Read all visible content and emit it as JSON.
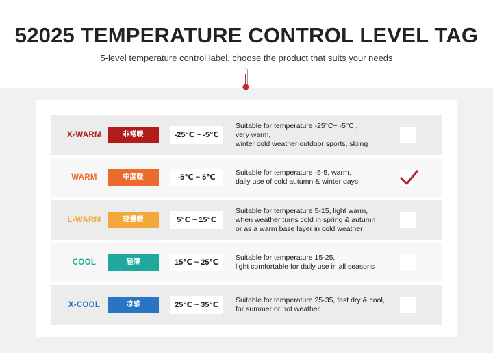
{
  "header": {
    "title": "52025 TEMPERATURE CONTROL LEVEL TAG",
    "subtitle": "5-level temperature control label, choose the product that suits your needs"
  },
  "levels": [
    {
      "name": "X-WARM",
      "cn": "非常暖",
      "color": "#b21c1c",
      "range": "-25℃ ~ -5℃",
      "desc": [
        "Suitable for temperature -25°C~ -5°C ,",
        "very warm,",
        "winter cold weather outdoor sports, skiing"
      ],
      "checked": false
    },
    {
      "name": "WARM",
      "cn": "中度暖",
      "color": "#ec6a2c",
      "range": "-5℃ ~ 5℃",
      "desc": [
        "Suitable for temperature -5-5, warm,",
        "daily use of cold autumn & winter days"
      ],
      "checked": true
    },
    {
      "name": "L-WARM",
      "cn": "轻量暖",
      "color": "#f3a83a",
      "range": "5℃ ~ 15℃",
      "desc": [
        "Suitable for temperature 5-15, light warm,",
        "when weather turns cold in spring & autumn",
        "or as a warm base layer in cold weather"
      ],
      "checked": false
    },
    {
      "name": "COOL",
      "cn": "轻薄",
      "color": "#1fa89e",
      "range": "15℃ ~ 25℃",
      "desc": [
        "Suitable for temperature 15-25,",
        "light  comfortable for daily use in all seasons"
      ],
      "checked": false
    },
    {
      "name": "X-COOL",
      "cn": "凉感",
      "color": "#2a74c4",
      "range": "25℃ ~ 35℃",
      "desc": [
        "Suitable for temperature 25-35, fast dry & cool,",
        "for summer or hot weather"
      ],
      "checked": false
    }
  ],
  "colors": {
    "tick": "#b32626",
    "thermometer": "#c62828"
  }
}
